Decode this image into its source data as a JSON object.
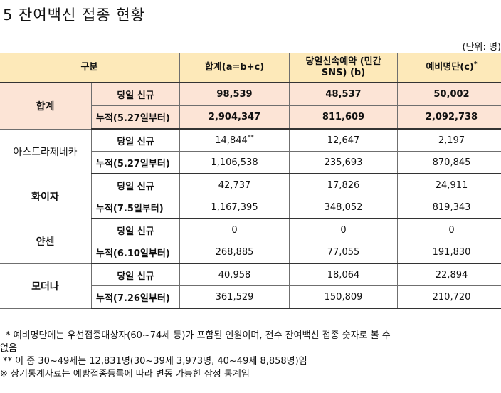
{
  "title": "5 잔여백신 접종 현황",
  "unit": "(단위: 명)",
  "headers": {
    "category": "구분",
    "total": "합계(a=b+c)",
    "sns_line1": "당일신속예약 (민간",
    "sns_line2": "SNS) (b)",
    "reserve": "예비명단(c)",
    "reserve_mark": "*"
  },
  "groups": [
    {
      "name": "합계",
      "rows": [
        {
          "label": "당일 신규",
          "total": "98,539",
          "sns": "48,537",
          "reserve": "50,002"
        },
        {
          "label": "누적(5.27일부터)",
          "total": "2,904,347",
          "sns": "811,609",
          "reserve": "2,092,738"
        }
      ]
    },
    {
      "name": "아스트라제네카",
      "rows": [
        {
          "label": "당일 신규",
          "total": "14,844",
          "total_mark": "**",
          "sns": "12,647",
          "reserve": "2,197"
        },
        {
          "label": "누적(5.27일부터)",
          "total": "1,106,538",
          "sns": "235,693",
          "reserve": "870,845"
        }
      ]
    },
    {
      "name": "화이자",
      "rows": [
        {
          "label": "당일 신규",
          "total": "42,737",
          "sns": "17,826",
          "reserve": "24,911"
        },
        {
          "label": "누적(7.5일부터)",
          "total": "1,167,395",
          "sns": "348,052",
          "reserve": "819,343"
        }
      ]
    },
    {
      "name": "얀센",
      "rows": [
        {
          "label": "당일 신규",
          "total": "0",
          "sns": "0",
          "reserve": "0"
        },
        {
          "label": "누적(6.10일부터)",
          "total": "268,885",
          "sns": "77,055",
          "reserve": "191,830"
        }
      ]
    },
    {
      "name": "모더나",
      "rows": [
        {
          "label": "당일 신규",
          "total": "40,958",
          "sns": "18,064",
          "reserve": "22,894"
        },
        {
          "label": "누적(7.26일부터)",
          "total": "361,529",
          "sns": "150,809",
          "reserve": "210,720"
        }
      ]
    }
  ],
  "notes": [
    "* 예비명단에는 우선접종대상자(60~74세 등)가 포함된 인원이며, 전수 잔여백신 접종 숫자로 볼 수",
    "없음",
    "** 이 중 30~49세는 12,831명(30~39세 3,973명, 40~49세 8,858명)임",
    "※ 상기통계자료는 예방접종등록에 따라 변동 가능한 잠정 통계임"
  ]
}
